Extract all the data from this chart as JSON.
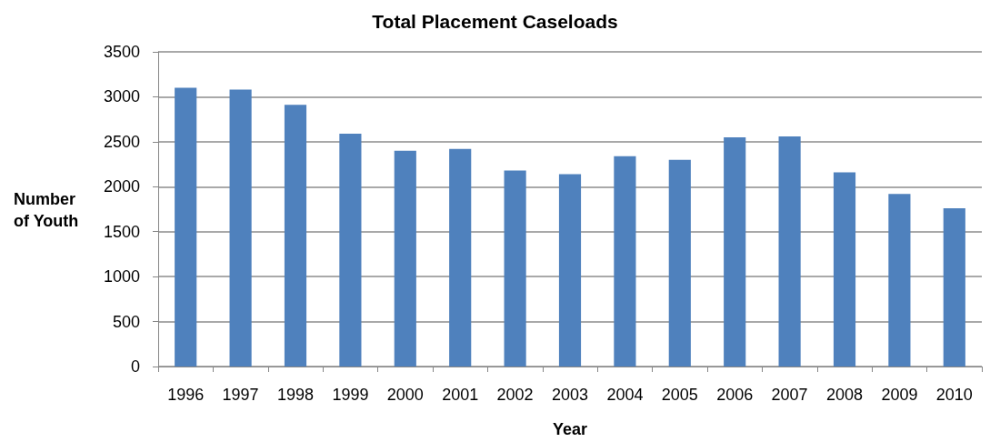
{
  "chart_data": {
    "type": "bar",
    "title": "Total Placement Caseloads",
    "xlabel": "Year",
    "ylabel": "Number of Youth",
    "categories": [
      "1996",
      "1997",
      "1998",
      "1999",
      "2000",
      "2001",
      "2002",
      "2003",
      "2004",
      "2005",
      "2006",
      "2007",
      "2008",
      "2009",
      "2010"
    ],
    "values": [
      3100,
      3080,
      2910,
      2590,
      2400,
      2420,
      2180,
      2140,
      2340,
      2300,
      2550,
      2560,
      2160,
      1920,
      1760
    ],
    "color": "#4f81bd",
    "ylim": [
      0,
      3500
    ],
    "yticks": [
      0,
      500,
      1000,
      1500,
      2000,
      2500,
      3000,
      3500
    ],
    "grid": "y"
  }
}
